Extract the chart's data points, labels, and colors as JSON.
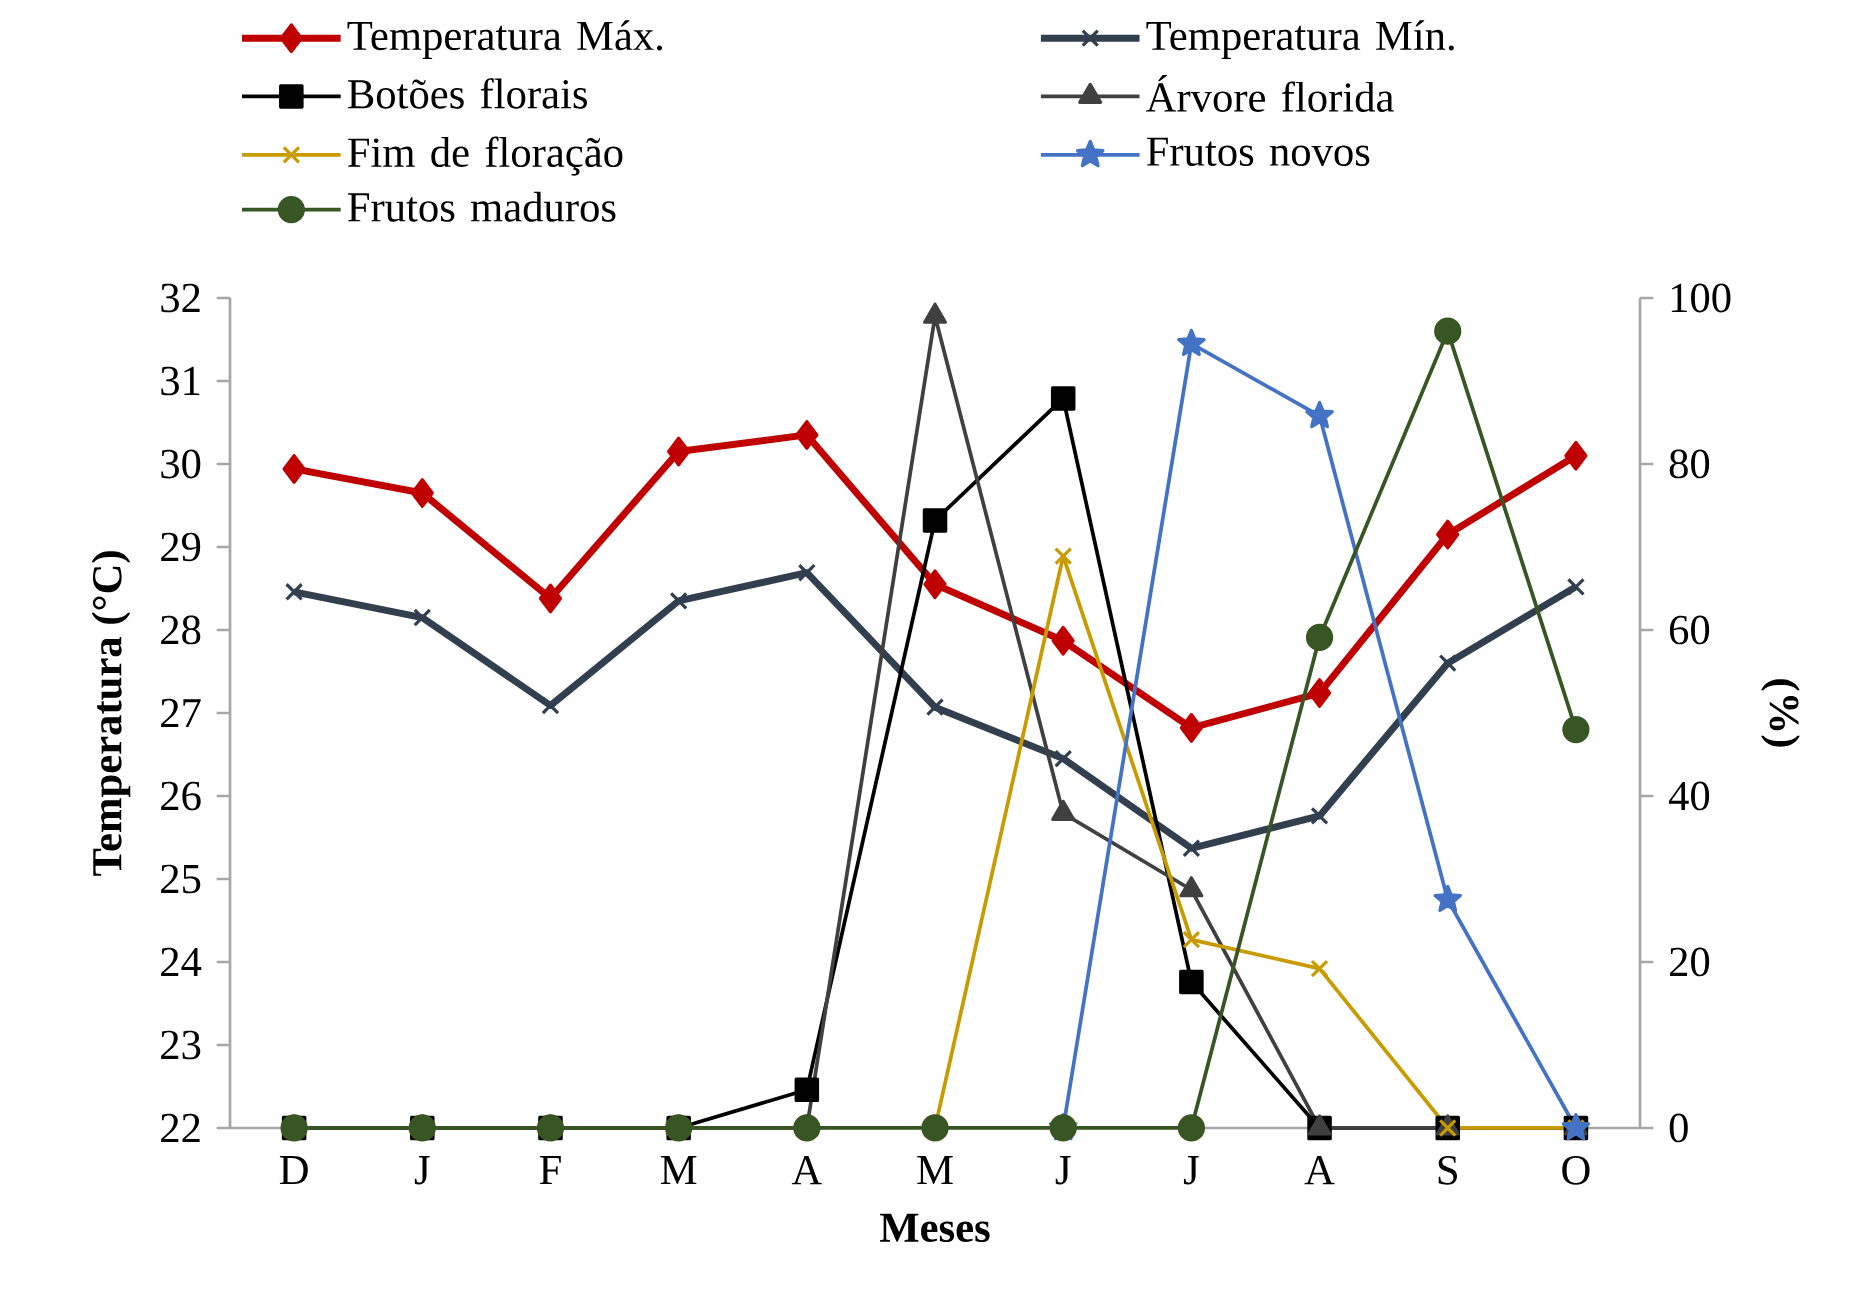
{
  "chart_data": {
    "type": "line",
    "xlabel": "Meses",
    "ylabel": "Temperatura (°C)",
    "y2label": "(%)",
    "categories": [
      "D",
      "J",
      "F",
      "M",
      "A",
      "M",
      "J",
      "J",
      "A",
      "S",
      "O"
    ],
    "ylim": [
      22,
      32
    ],
    "yticks": [
      22,
      23,
      24,
      25,
      26,
      27,
      28,
      29,
      30,
      31,
      32
    ],
    "y2lim": [
      0,
      100
    ],
    "y2ticks": [
      0,
      20,
      40,
      60,
      80,
      100
    ],
    "legend": "top",
    "grid": false,
    "line_style": "solid",
    "series": [
      {
        "name": "Temperatura Máx.",
        "color": "#c00000",
        "marker": "diamond",
        "values": [
          29.94,
          29.65,
          28.38,
          30.15,
          30.35,
          28.55,
          27.87,
          26.82,
          27.24,
          29.15,
          30.1
        ]
      },
      {
        "name": "Temperatura Mín.",
        "color": "#323f4f",
        "marker": "cross",
        "values": [
          28.46,
          28.15,
          27.09,
          28.35,
          28.69,
          27.07,
          26.45,
          25.37,
          25.76,
          27.6,
          28.52
        ]
      },
      {
        "name": "Botões florais",
        "color": "#000000",
        "marker": "square",
        "axis": "y2",
        "values": [
          0,
          0,
          0,
          0,
          4.6,
          73.2,
          87.9,
          17.6,
          0,
          0,
          0
        ]
      },
      {
        "name": "Árvore florida",
        "color": "#404040",
        "marker": "triangle",
        "axis": "y2",
        "values": [
          0,
          0,
          0,
          0,
          0,
          97.8,
          37.9,
          28.7,
          0,
          0,
          0
        ]
      },
      {
        "name": "Fim de floração",
        "color": "#c89b00",
        "marker": "cross",
        "axis": "y2",
        "values": [
          null,
          null,
          null,
          null,
          null,
          0,
          68.9,
          22.7,
          19.2,
          0,
          0
        ]
      },
      {
        "name": "Frutos novos",
        "color": "#4472c4",
        "marker": "star",
        "axis": "y2",
        "values": [
          null,
          null,
          null,
          null,
          null,
          null,
          0,
          94.5,
          85.8,
          27.5,
          0
        ]
      },
      {
        "name": "Frutos maduros",
        "color": "#375623",
        "marker": "circle",
        "axis": "y2",
        "values": [
          0,
          0,
          0,
          0,
          0,
          0,
          0,
          0,
          59.1,
          96.0,
          48.0
        ]
      }
    ]
  }
}
